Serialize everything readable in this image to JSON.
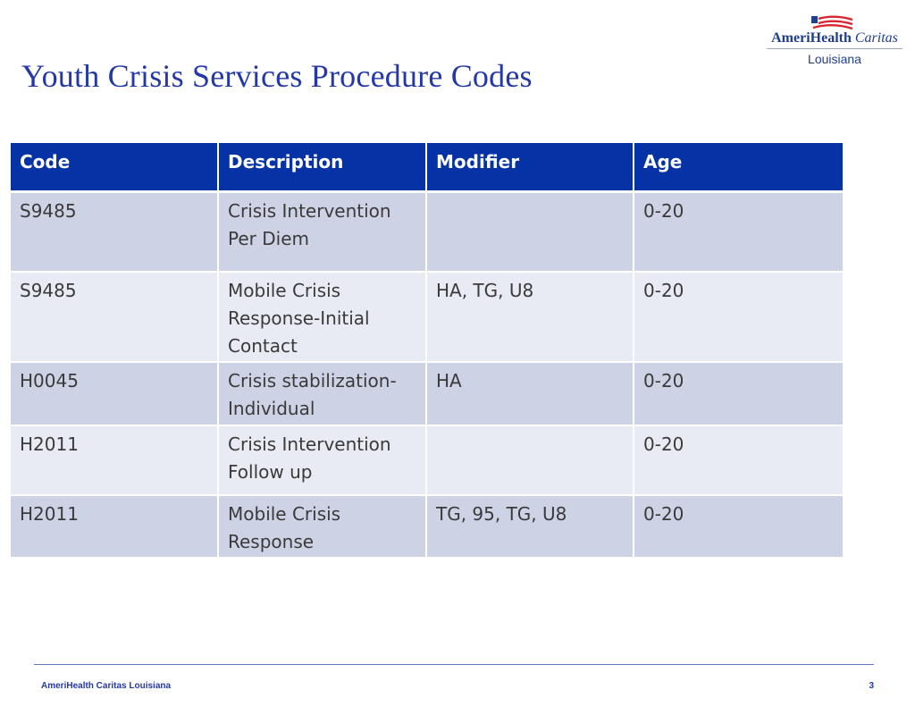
{
  "slide": {
    "title": "Youth Crisis Services Procedure Codes",
    "title_color": "#2438a8"
  },
  "logo": {
    "brand_bold": "AmeriHealth",
    "brand_italic": "Caritas",
    "state": "Louisiana",
    "brand_color": "#1f3f8c",
    "flag_colors": [
      "#1f3f8c",
      "#d8262f"
    ]
  },
  "table": {
    "header_color": "#0533a6",
    "row_color": "#cdd3e5",
    "row_alt_color": "#e8ebf3",
    "headers": [
      "Code",
      "Description",
      "Modifier",
      "Age"
    ],
    "rows": [
      {
        "code": "S9485",
        "description_lines": [
          "Crisis Intervention",
          "Per Diem"
        ],
        "modifier": "",
        "age": "0-20"
      },
      {
        "code": "S9485",
        "description_lines": [
          "Mobile Crisis",
          "Response-Initial",
          "Contact"
        ],
        "modifier": "HA, TG, U8",
        "age": "0-20"
      },
      {
        "code": "H0045",
        "description_lines": [
          "Crisis stabilization-",
          "Individual"
        ],
        "modifier": "HA",
        "age": "0-20"
      },
      {
        "code": "H2011",
        "description_lines": [
          "Crisis Intervention",
          "Follow up"
        ],
        "modifier": "",
        "age": "0-20"
      },
      {
        "code": "H2011",
        "description_lines": [
          "Mobile Crisis",
          "Response"
        ],
        "modifier": "TG, 95, TG, U8",
        "age": "0-20"
      }
    ]
  },
  "footer": {
    "org": "AmeriHealth Caritas Louisiana",
    "page_number": "3"
  }
}
